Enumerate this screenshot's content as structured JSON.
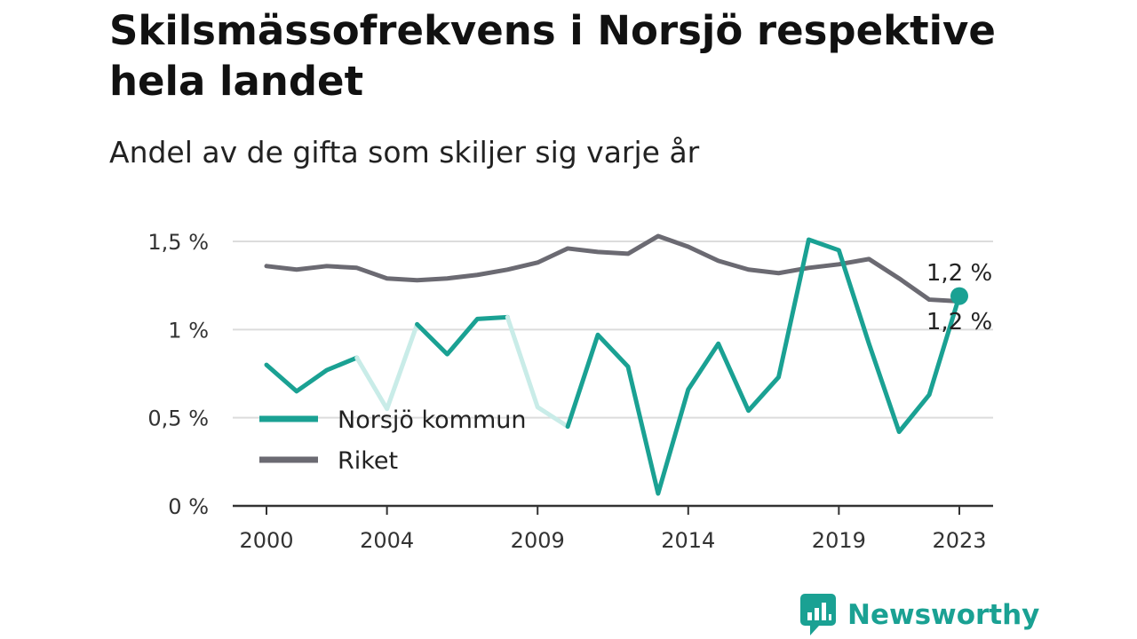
{
  "chart_data": {
    "type": "line",
    "title": "Skilsmässofrekvens i Norsjö respektive hela landet",
    "subtitle": "Andel av de gifta som skiljer sig varje år",
    "x": [
      2000,
      2001,
      2002,
      2003,
      2004,
      2005,
      2006,
      2007,
      2008,
      2009,
      2010,
      2011,
      2012,
      2013,
      2014,
      2015,
      2016,
      2017,
      2018,
      2019,
      2020,
      2021,
      2022,
      2023
    ],
    "x_tick_labels": [
      "2000",
      "2004",
      "2009",
      "2014",
      "2019",
      "2023"
    ],
    "x_tick_values": [
      2000,
      2004,
      2009,
      2014,
      2019,
      2023
    ],
    "y_tick_labels": [
      "0 %",
      "0,5 %",
      "1 %",
      "1,5 %"
    ],
    "y_tick_values": [
      0,
      0.5,
      1,
      1.5
    ],
    "ylim": [
      0,
      1.5
    ],
    "series": [
      {
        "name": "Norsjö kommun",
        "color": "#1aa193",
        "values": [
          0.8,
          0.65,
          0.77,
          0.84,
          0.55,
          1.03,
          0.86,
          1.06,
          1.07,
          0.56,
          0.45,
          0.97,
          0.79,
          0.07,
          0.66,
          0.92,
          0.54,
          0.73,
          1.51,
          1.45,
          0.92,
          0.42,
          0.63,
          1.19
        ],
        "light_segments": [
          [
            3,
            5
          ],
          [
            8,
            10
          ]
        ],
        "end_label": "1,2 %"
      },
      {
        "name": "Riket",
        "color": "#6b6a72",
        "values": [
          1.36,
          1.34,
          1.36,
          1.35,
          1.29,
          1.28,
          1.29,
          1.31,
          1.34,
          1.38,
          1.46,
          1.44,
          1.43,
          1.53,
          1.47,
          1.39,
          1.34,
          1.32,
          1.35,
          1.37,
          1.4,
          1.29,
          1.17,
          1.16
        ],
        "end_label": "1,2 %"
      }
    ],
    "grid": true,
    "legend_position": "bottom-left"
  },
  "brand": {
    "name": "Newsworthy",
    "color": "#1aa193"
  }
}
